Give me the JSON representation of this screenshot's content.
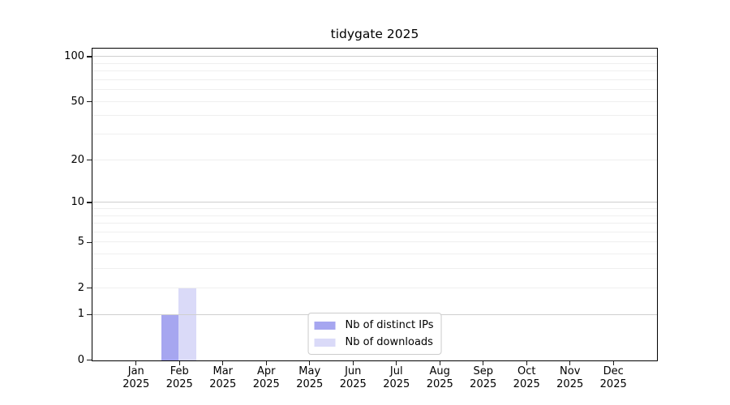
{
  "chart_data": {
    "type": "bar",
    "title": "tidygate 2025",
    "categories": [
      "Jan 2025",
      "Feb 2025",
      "Mar 2025",
      "Apr 2025",
      "May 2025",
      "Jun 2025",
      "Jul 2025",
      "Aug 2025",
      "Sep 2025",
      "Oct 2025",
      "Nov 2025",
      "Dec 2025"
    ],
    "series": [
      {
        "name": "Nb of distinct IPs",
        "color": "#a6a6f0",
        "values": [
          0,
          1,
          0,
          0,
          0,
          0,
          0,
          0,
          0,
          0,
          0,
          0
        ]
      },
      {
        "name": "Nb of downloads",
        "color": "#dadaf8",
        "values": [
          0,
          2,
          0,
          0,
          0,
          0,
          0,
          0,
          0,
          0,
          0,
          0
        ]
      }
    ],
    "xlabel": "",
    "ylabel": "",
    "yscale": "log10(1+y)",
    "ylim": [
      0,
      113
    ],
    "y_ticks": [
      0,
      1,
      2,
      5,
      10,
      20,
      50,
      100
    ],
    "grid_major_values": [
      1,
      10,
      100
    ],
    "grid_minor_values": [
      2,
      3,
      4,
      5,
      6,
      7,
      8,
      9,
      20,
      30,
      40,
      50,
      60,
      70,
      80,
      90
    ],
    "grid": "on",
    "legend_position": "lower center",
    "colors": {
      "axis": "#000000",
      "grid_major": "#cfcfcf",
      "grid_minor": "#efefef",
      "background": "#ffffff"
    }
  }
}
